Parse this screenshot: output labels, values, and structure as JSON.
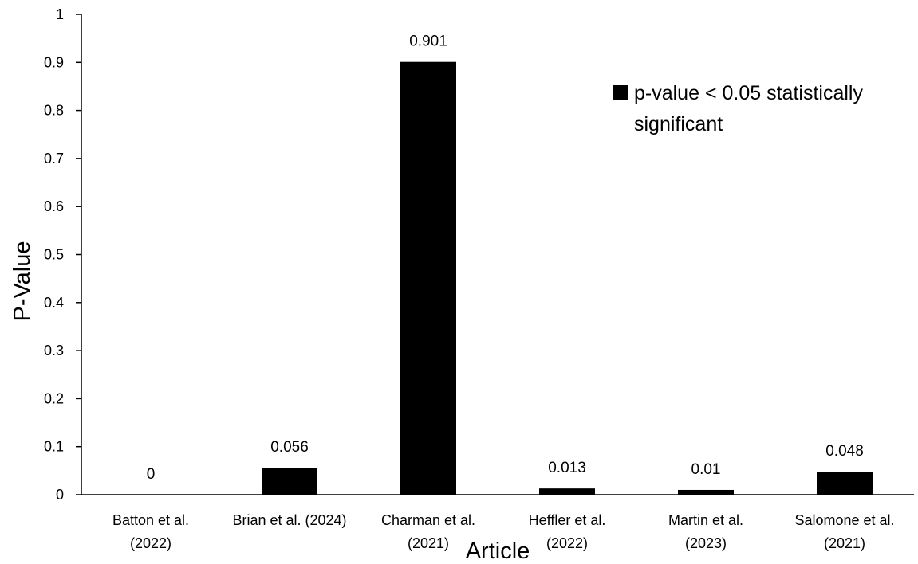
{
  "chart_data": {
    "type": "bar",
    "title": "",
    "xlabel": "Article",
    "ylabel": "P-Value",
    "ylim": [
      0,
      1
    ],
    "yticks": [
      "0",
      "0.1",
      "0.2",
      "0.3",
      "0.4",
      "0.5",
      "0.6",
      "0.7",
      "0.8",
      "0.9",
      "1"
    ],
    "categories": [
      [
        "Batton et al.",
        "(2022)"
      ],
      [
        "Brian et al. (2024)"
      ],
      [
        "Charman et al.",
        "(2021)"
      ],
      [
        "Heffler et al.",
        "(2022)"
      ],
      [
        "Martin et al.",
        "(2023)"
      ],
      [
        "Salomone et al.",
        "(2021)"
      ]
    ],
    "series": [
      {
        "name": "p-value < 0.05 statistically significant",
        "values": [
          0,
          0.056,
          0.901,
          0.013,
          0.01,
          0.048
        ],
        "data_labels": [
          "0",
          "0.056",
          "0.901",
          "0.013",
          "0.01",
          "0.048"
        ],
        "color": "#000000"
      }
    ],
    "legend": {
      "position": "top-right",
      "lines": [
        "p-value < 0.05 statistically",
        "significant"
      ]
    },
    "grid": false
  }
}
